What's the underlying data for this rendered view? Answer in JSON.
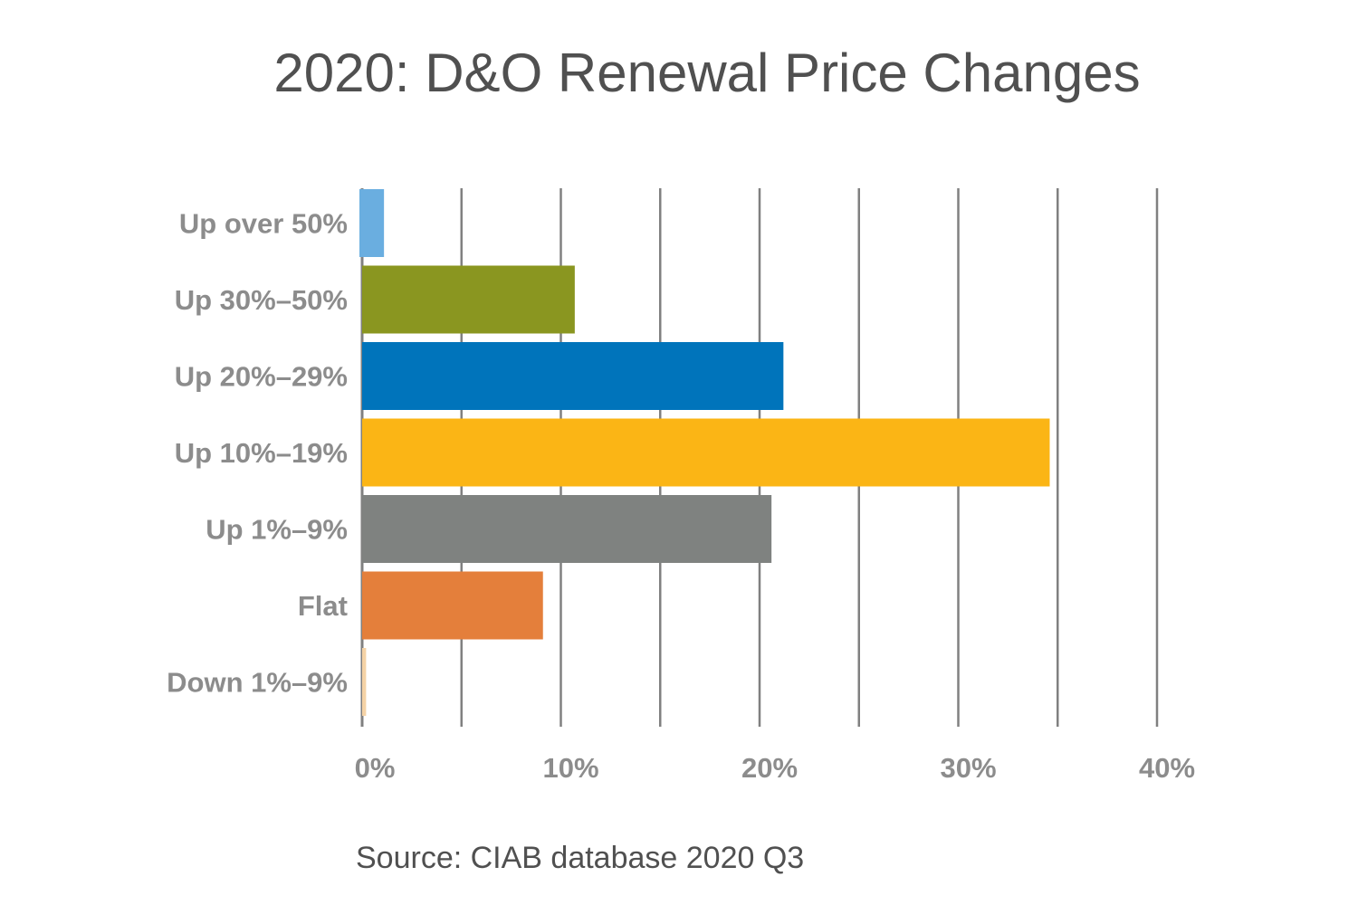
{
  "chart_data": {
    "type": "bar",
    "orientation": "horizontal",
    "title": "2020: D&O Renewal Price Changes",
    "source": "Source: CIAB database 2020 Q3",
    "categories": [
      "Up over 50%",
      "Up 30%–50%",
      "Up 20%–29%",
      "Up 10%–19%",
      "Up 1%–9%",
      "Flat",
      "Down 1%–9%"
    ],
    "values": [
      1.1,
      10.7,
      21.2,
      34.6,
      20.6,
      9.1,
      0.2
    ],
    "colors": [
      "#6aaee0",
      "#8a9620",
      "#0074bb",
      "#fbb515",
      "#7f8280",
      "#e47f3b",
      "#f5d3a6"
    ],
    "unit": "%",
    "xlim": [
      0,
      40
    ],
    "xticks": [
      0,
      10,
      20,
      30,
      40
    ],
    "xtick_labels": [
      "0%",
      "10%",
      "20%",
      "30%",
      "40%"
    ],
    "gridlines_every": 5,
    "grid": true,
    "xlabel": "",
    "ylabel": ""
  }
}
